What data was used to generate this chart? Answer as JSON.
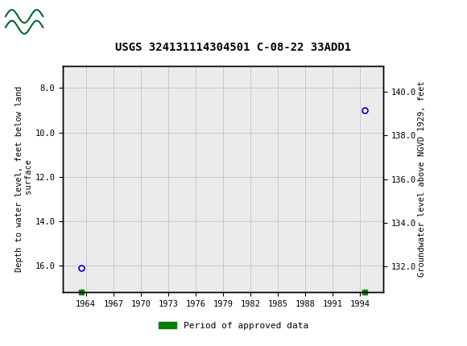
{
  "title": "USGS 324131114304501 C-08-22 33ADD1",
  "data_points": [
    {
      "year": 1963.5,
      "depth": 16.1
    },
    {
      "year": 1994.5,
      "depth": 9.0
    }
  ],
  "green_squares": [
    {
      "year": 1963.5
    },
    {
      "year": 1994.5
    }
  ],
  "right_ylabel": "Groundwater level above NGVD 1929, feet",
  "ylim_left": [
    17.2,
    7.0
  ],
  "ylim_right": [
    130.8,
    141.2
  ],
  "xlim": [
    1961.5,
    1996.5
  ],
  "xticks": [
    1964,
    1967,
    1970,
    1973,
    1976,
    1979,
    1982,
    1985,
    1988,
    1991,
    1994
  ],
  "yticks_left": [
    8.0,
    10.0,
    12.0,
    14.0,
    16.0
  ],
  "yticks_right": [
    132.0,
    134.0,
    136.0,
    138.0,
    140.0
  ],
  "point_color": "#0000cc",
  "point_marker": "o",
  "point_markersize": 5,
  "green_color": "#008000",
  "green_sq_size": 5,
  "header_bg_color": "#006633",
  "plot_bg_color": "#ebebeb",
  "grid_color": "#c8c8c8",
  "legend_label": "Period of approved data",
  "title_fontsize": 10,
  "axis_label_fontsize": 7.5,
  "tick_fontsize": 7.5,
  "font_family": "monospace"
}
